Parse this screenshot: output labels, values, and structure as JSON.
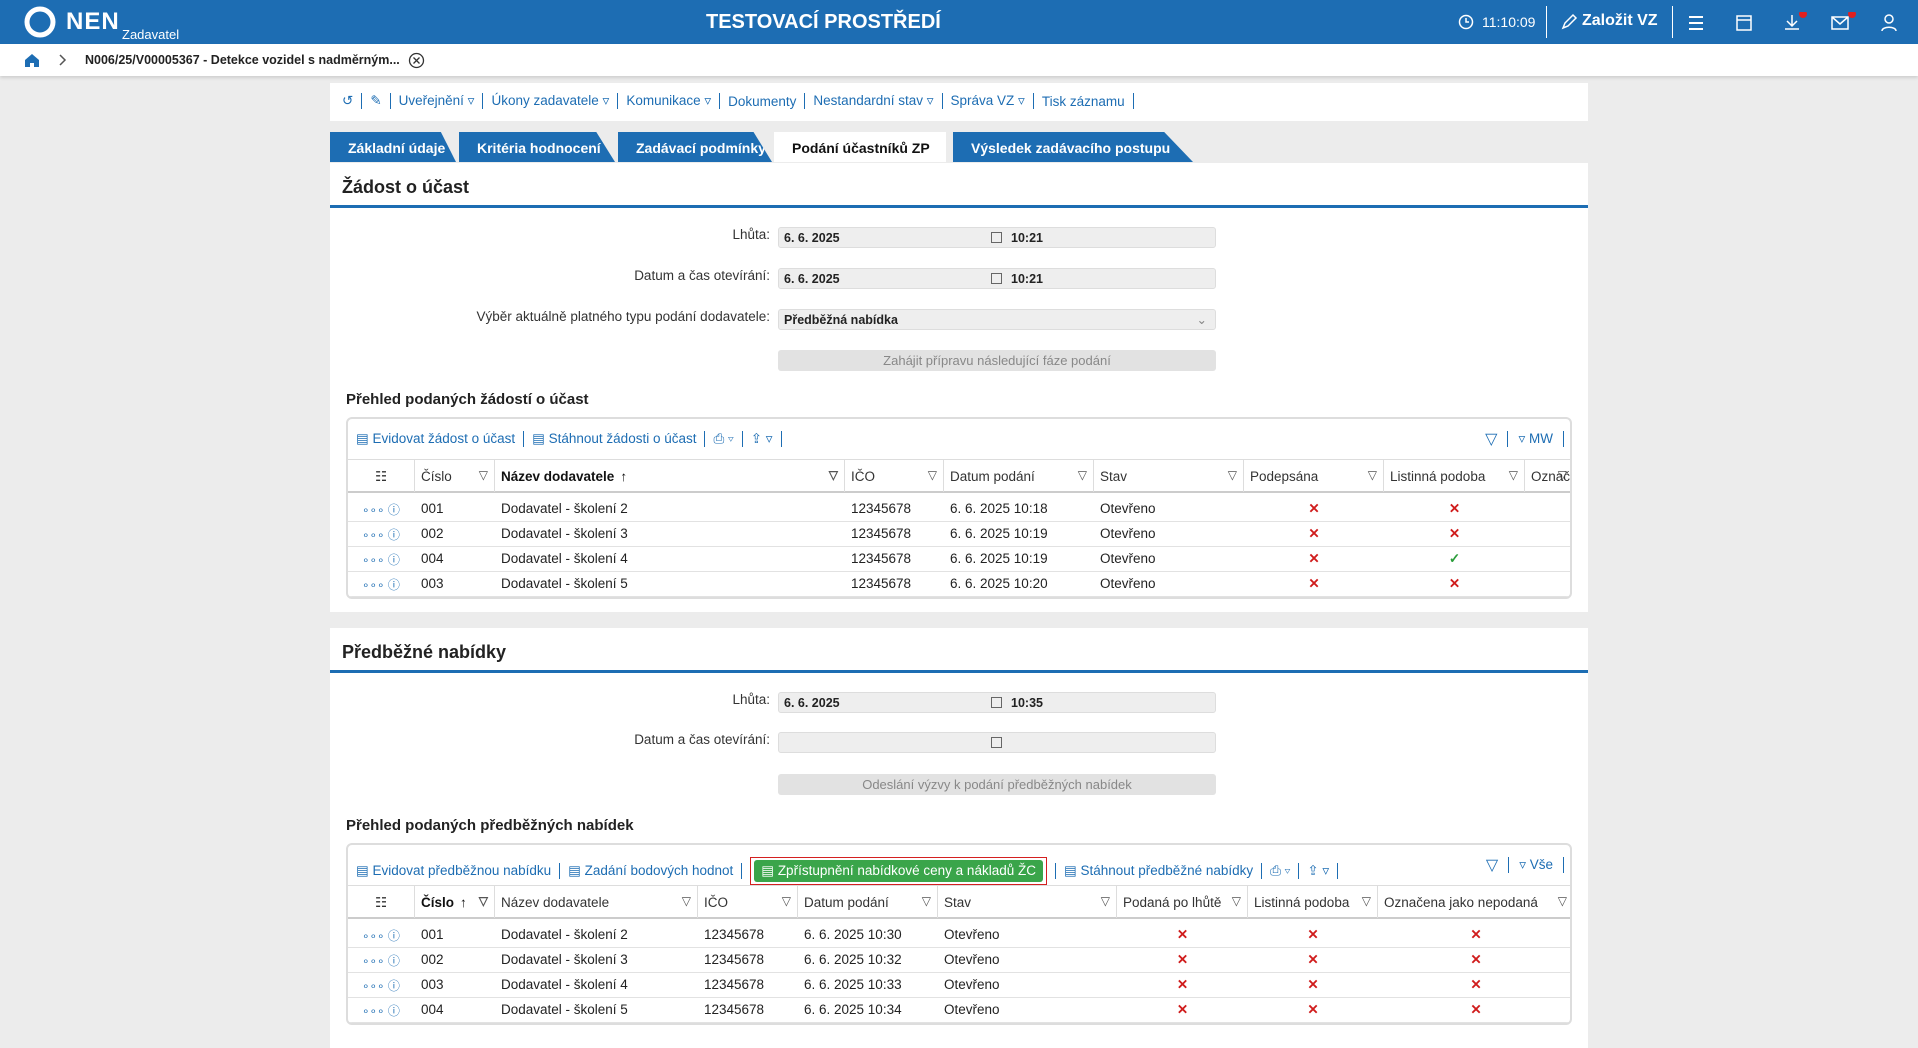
{
  "header": {
    "logo": "NEN",
    "role": "Zadavatel",
    "title": "TESTOVACÍ PROSTŘEDÍ",
    "time": "11:10:09",
    "create": "Založit VZ"
  },
  "breadcrumb": "N006/25/V00005367 - Detekce vozidel s nadměrným...",
  "toolbar": [
    "Uveřejnění",
    "Úkony zadavatele",
    "Komunikace",
    "Dokumenty",
    "Nestandardní stav",
    "Správa VZ",
    "Tisk záznamu"
  ],
  "tabs": {
    "items": [
      "Základní údaje",
      "Kritéria hodnocení",
      "Zadávací podmínky",
      "Podání účastníků ZP",
      "Výsledek zadávacího postupu"
    ],
    "active": 3
  },
  "sections": [
    {
      "title": "Žádost o účast",
      "fields": [
        {
          "label": "Lhůta:",
          "date": "6. 6. 2025",
          "time": "10:21"
        },
        {
          "label": "Datum a čas otevírání:",
          "date": "6. 6. 2025",
          "time": "10:21"
        }
      ],
      "select": {
        "label": "Výběr aktuálně platného typu podání dodavatele:",
        "value": "Předběžná nabídka"
      },
      "button": "Zahájit přípravu následující fáze podání",
      "table": {
        "title": "Přehled podaných žádostí o účast",
        "actions": [
          "Evidovat žádost o účast",
          "Stáhnout žádosti o účast"
        ],
        "filter_label": "MW",
        "columns": [
          "Číslo",
          "Název dodavatele",
          "IČO",
          "Datum podání",
          "Stav",
          "Podepsána",
          "Listinná podoba",
          "Označ"
        ],
        "sort_column": 1,
        "rows": [
          {
            "cells": [
              "001",
              "Dodavatel - školení 2",
              "12345678",
              "6. 6. 2025 10:18",
              "Otevřeno"
            ],
            "flags": [
              false,
              false
            ]
          },
          {
            "cells": [
              "002",
              "Dodavatel - školení 3",
              "12345678",
              "6. 6. 2025 10:19",
              "Otevřeno"
            ],
            "flags": [
              false,
              false
            ]
          },
          {
            "cells": [
              "004",
              "Dodavatel - školení 4",
              "12345678",
              "6. 6. 2025 10:19",
              "Otevřeno"
            ],
            "flags": [
              false,
              true
            ]
          },
          {
            "cells": [
              "003",
              "Dodavatel - školení 5",
              "12345678",
              "6. 6. 2025 10:20",
              "Otevřeno"
            ],
            "flags": [
              false,
              false
            ]
          }
        ]
      }
    },
    {
      "title": "Předběžné nabídky",
      "fields": [
        {
          "label": "Lhůta:",
          "date": "6. 6. 2025",
          "time": "10:35"
        },
        {
          "label": "Datum a čas otevírání:"
        }
      ],
      "button": "Odeslání výzvy k podání předběžných nabídek",
      "table": {
        "title": "Přehled podaných předběžných nabídek",
        "actions": [
          "Evidovat předběžnou nabídku",
          "Zadání bodových hodnot",
          "Zpřístupnění nabídkové ceny a nákladů ŽC",
          "Stáhnout předběžné nabídky"
        ],
        "highlighted_action": 2,
        "filter_label": "Vše",
        "columns": [
          "Číslo",
          "Název dodavatele",
          "IČO",
          "Datum podání",
          "Stav",
          "Podaná po lhůtě",
          "Listinná podoba",
          "Označena jako nepodaná"
        ],
        "sort_column": 0,
        "rows": [
          {
            "cells": [
              "001",
              "Dodavatel - školení 2",
              "12345678",
              "6. 6. 2025 10:30",
              "Otevřeno"
            ],
            "flags": [
              false,
              false,
              false
            ]
          },
          {
            "cells": [
              "002",
              "Dodavatel - školení 3",
              "12345678",
              "6. 6. 2025 10:32",
              "Otevřeno"
            ],
            "flags": [
              false,
              false,
              false
            ]
          },
          {
            "cells": [
              "003",
              "Dodavatel - školení 4",
              "12345678",
              "6. 6. 2025 10:33",
              "Otevřeno"
            ],
            "flags": [
              false,
              false,
              false
            ]
          },
          {
            "cells": [
              "004",
              "Dodavatel - školení 5",
              "12345678",
              "6. 6. 2025 10:34",
              "Otevřeno"
            ],
            "flags": [
              false,
              false,
              false
            ]
          }
        ]
      }
    }
  ]
}
